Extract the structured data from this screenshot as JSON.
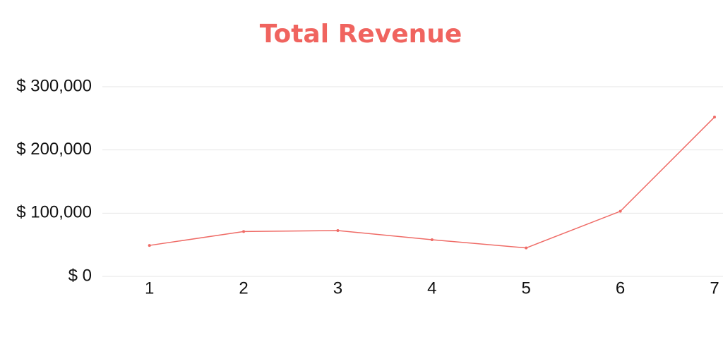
{
  "chart_data": {
    "type": "line",
    "title": "Total Revenue",
    "categories": [
      "1",
      "2",
      "3",
      "4",
      "5",
      "6",
      "7"
    ],
    "series": [
      {
        "name": "Total Revenue",
        "color": "#ef6b66",
        "values": [
          49000,
          71000,
          72500,
          58000,
          45000,
          103000,
          252000
        ]
      }
    ],
    "ylim": [
      0,
      300000
    ],
    "yticks": [
      {
        "value": 0,
        "label": "$ 0"
      },
      {
        "value": 100000,
        "label": "$ 100,000"
      },
      {
        "value": 200000,
        "label": "$ 200,000"
      },
      {
        "value": 300000,
        "label": "$ 300,000"
      }
    ],
    "grid": true
  }
}
